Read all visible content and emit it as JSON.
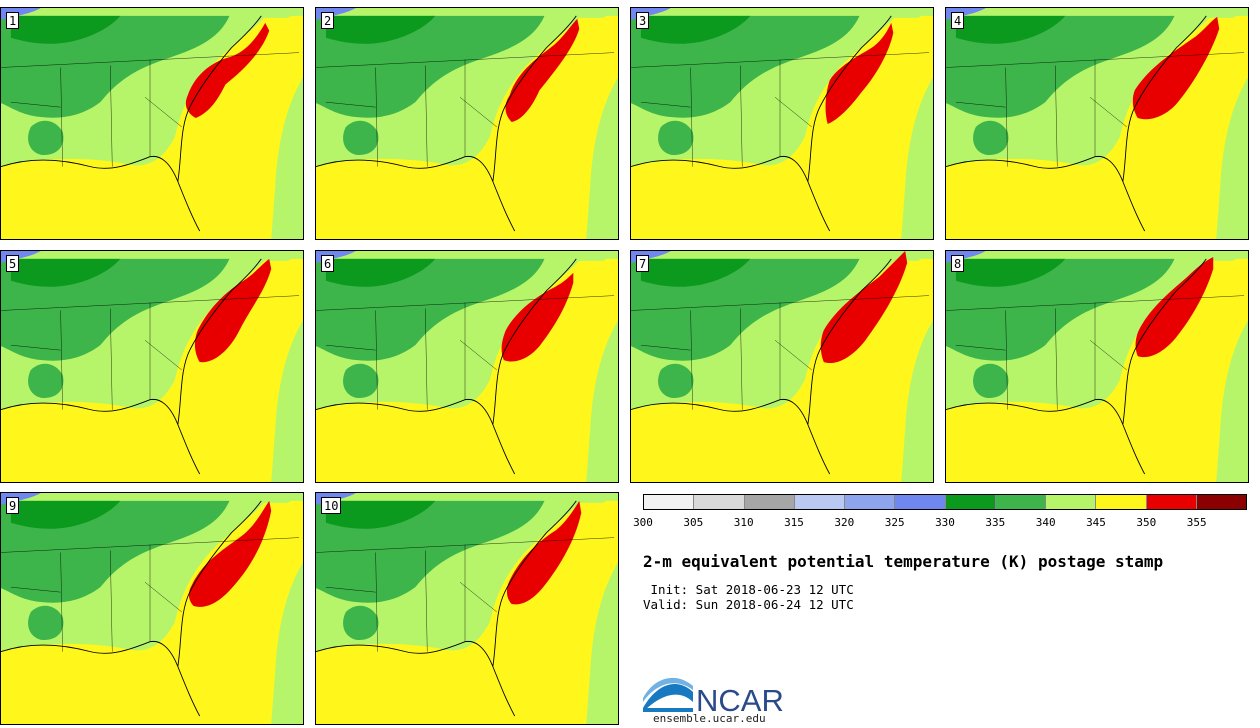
{
  "panels": [
    {
      "label": "1"
    },
    {
      "label": "2"
    },
    {
      "label": "3"
    },
    {
      "label": "4"
    },
    {
      "label": "5"
    },
    {
      "label": "6"
    },
    {
      "label": "7"
    },
    {
      "label": "8"
    },
    {
      "label": "9"
    },
    {
      "label": "10"
    }
  ],
  "colorbar": {
    "ticks": [
      "300",
      "305",
      "310",
      "315",
      "320",
      "325",
      "330",
      "335",
      "340",
      "345",
      "350",
      "355"
    ],
    "colors": [
      "#f2f2f2",
      "#d9d9d9",
      "#a6a6a6",
      "#b9c9f2",
      "#8ea5ee",
      "#6f87ee",
      "#0b9a1d",
      "#3db54a",
      "#b6f56a",
      "#fff71c",
      "#e80000",
      "#8b0000"
    ]
  },
  "title": "2-m equivalent potential temperature (K) postage stamp",
  "init": " Init: Sat 2018-06-23 12 UTC",
  "valid": "Valid: Sun 2018-06-24 12 UTC",
  "logo": {
    "text": "NCAR",
    "url": "ensemble.ucar.edu"
  }
}
